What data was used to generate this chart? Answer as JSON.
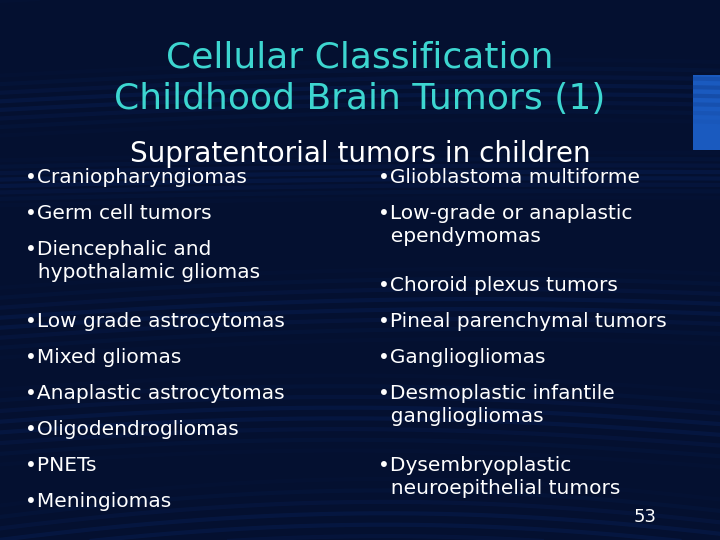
{
  "title_line1": "Cellular Classification",
  "title_line2": "Childhood Brain Tumors (1)",
  "subtitle": "Supratentorial tumors in children",
  "left_items": [
    "•Craniopharyngiomas",
    "•Germ cell tumors",
    "•Diencephalic and\n  hypothalamic gliomas",
    "•Low grade astrocytomas",
    "•Mixed gliomas",
    "•Anaplastic astrocytomas",
    "•Oligodendrogliomas",
    "•PNETs",
    "•Meningiomas"
  ],
  "right_items": [
    "•Glioblastoma multiforme",
    "•Low-grade or anaplastic\n  ependymomas",
    "•Choroid plexus tumors",
    "•Pineal parenchymal tumors",
    "•Gangliogliomas",
    "•Desmoplastic infantile\n  gangliogliomas",
    "•Dysembryoplastic\n  neuroepithelial tumors"
  ],
  "page_number": "53",
  "bg_color": "#041030",
  "wave_color": "#0a2a6e",
  "title_color": "#3dd6d0",
  "subtitle_color": "#ffffff",
  "body_color": "#ffffff",
  "page_num_color": "#ffffff",
  "rect_color": "#1a5abf",
  "title_fontsize": 26,
  "subtitle_fontsize": 20,
  "body_fontsize": 14.5
}
